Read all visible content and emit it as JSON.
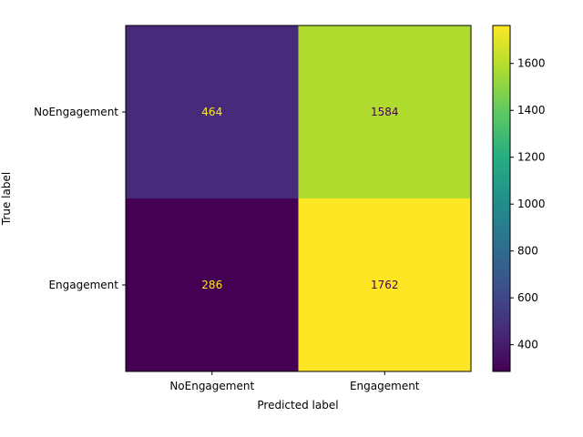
{
  "chart_data": {
    "type": "heatmap",
    "title": "",
    "xlabel": "Predicted label",
    "ylabel": "True label",
    "x_categories": [
      "NoEngagement",
      "Engagement"
    ],
    "y_categories": [
      "NoEngagement",
      "Engagement"
    ],
    "values": [
      [
        464,
        1584
      ],
      [
        286,
        1762
      ]
    ],
    "colormap": "viridis",
    "colorbar": {
      "min": 286,
      "max": 1762,
      "ticks": [
        400,
        600,
        800,
        1000,
        1200,
        1400,
        1600
      ]
    },
    "grid": false,
    "text_colors": {
      "light_cells": "#440154",
      "dark_cells": "#fde725"
    }
  }
}
